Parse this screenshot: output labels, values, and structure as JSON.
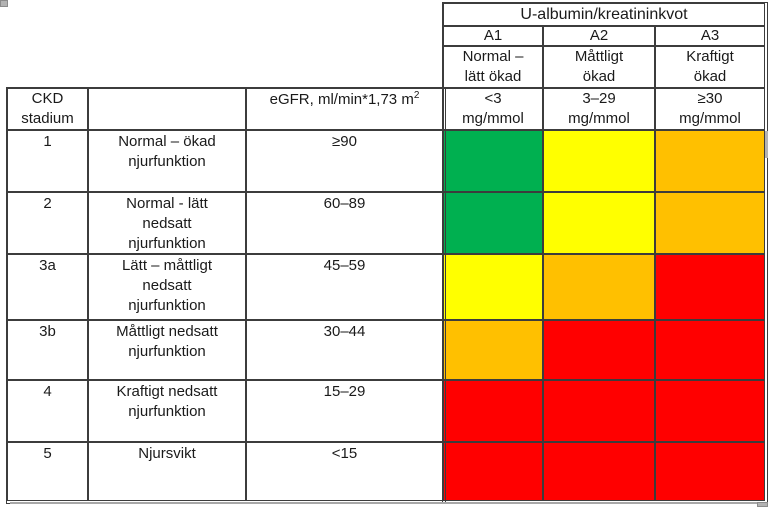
{
  "table": {
    "albumin_header": "U-albumin/kreatininkvot",
    "albumin_columns": [
      {
        "code": "A1",
        "label_lines": [
          "Normal –",
          "lätt ökad"
        ],
        "range_lines": [
          "<3",
          "mg/mmol"
        ]
      },
      {
        "code": "A2",
        "label_lines": [
          "Måttligt",
          "ökad"
        ],
        "range_lines": [
          "3–29",
          "mg/mmol"
        ]
      },
      {
        "code": "A3",
        "label_lines": [
          "Kraftigt",
          "ökad"
        ],
        "range_lines": [
          "≥30",
          "mg/mmol"
        ]
      }
    ],
    "stage_header_lines": [
      "CKD",
      "stadium"
    ],
    "description_header": "",
    "egfr_header": {
      "text": "eGFR, ml/min*1,73 m",
      "superscript": "2"
    },
    "palette": {
      "green": "#00B050",
      "yellow": "#FFFF00",
      "orange": "#FFC000",
      "red": "#FF0000"
    },
    "rows": [
      {
        "stage": "1",
        "description_lines": [
          "Normal – ökad",
          "njurfunktion",
          ""
        ],
        "egfr": "≥90",
        "risk_colors": [
          "#00B050",
          "#FFFF00",
          "#FFC000"
        ]
      },
      {
        "stage": "2",
        "description_lines": [
          "Normal - lätt",
          "nedsatt",
          "njurfunktion"
        ],
        "egfr": "60–89",
        "risk_colors": [
          "#00B050",
          "#FFFF00",
          "#FFC000"
        ]
      },
      {
        "stage": "3a",
        "description_lines": [
          "Lätt – måttligt",
          "nedsatt",
          "njurfunktion"
        ],
        "egfr": "45–59",
        "risk_colors": [
          "#FFFF00",
          "#FFC000",
          "#FF0000"
        ]
      },
      {
        "stage": "3b",
        "description_lines": [
          "Måttligt nedsatt",
          "njurfunktion",
          ""
        ],
        "egfr": "30–44",
        "risk_colors": [
          "#FFC000",
          "#FF0000",
          "#FF0000"
        ]
      },
      {
        "stage": "4",
        "description_lines": [
          "Kraftigt nedsatt",
          "njurfunktion",
          ""
        ],
        "egfr": "15–29",
        "risk_colors": [
          "#FF0000",
          "#FF0000",
          "#FF0000"
        ]
      },
      {
        "stage": "5",
        "description_lines": [
          "Njursvikt",
          "",
          ""
        ],
        "egfr": "<15",
        "risk_colors": [
          "#FF0000",
          "#FF0000",
          "#FF0000"
        ]
      }
    ]
  }
}
